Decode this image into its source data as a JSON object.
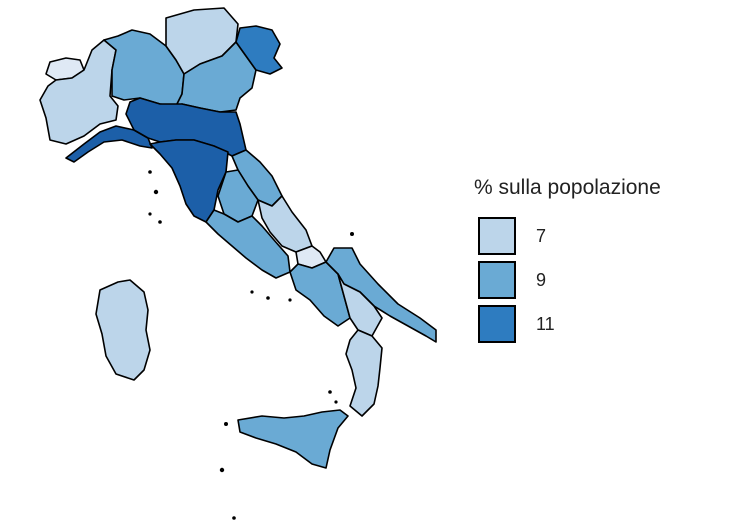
{
  "legend": {
    "title": "% sulla popolazione",
    "items": [
      {
        "label": "7",
        "color": "#bcd5ea"
      },
      {
        "label": "9",
        "color": "#6aaad4"
      },
      {
        "label": "11",
        "color": "#2e7cc0"
      }
    ]
  },
  "palette": {
    "lightest": "#dfe9f5",
    "light": "#bcd5ea",
    "mid": "#6aaad4",
    "dark": "#2e7cc0",
    "darkest": "#1c5fa8"
  },
  "regions": [
    {
      "name": "Valle d'Aosta",
      "value": 6,
      "tone": "lightest"
    },
    {
      "name": "Piemonte",
      "value": 8,
      "tone": "light"
    },
    {
      "name": "Lombardia",
      "value": 9,
      "tone": "mid"
    },
    {
      "name": "Trentino-Alto Adige",
      "value": 8,
      "tone": "light"
    },
    {
      "name": "Veneto",
      "value": 9,
      "tone": "mid"
    },
    {
      "name": "Friuli-Venezia Giulia",
      "value": 10,
      "tone": "dark"
    },
    {
      "name": "Liguria",
      "value": 11,
      "tone": "darkest"
    },
    {
      "name": "Emilia-Romagna",
      "value": 11,
      "tone": "darkest"
    },
    {
      "name": "Toscana",
      "value": 11,
      "tone": "darkest"
    },
    {
      "name": "Umbria",
      "value": 9,
      "tone": "mid"
    },
    {
      "name": "Marche",
      "value": 9,
      "tone": "mid"
    },
    {
      "name": "Lazio",
      "value": 9,
      "tone": "mid"
    },
    {
      "name": "Abruzzo",
      "value": 8,
      "tone": "light"
    },
    {
      "name": "Molise",
      "value": 6,
      "tone": "lightest"
    },
    {
      "name": "Campania",
      "value": 9,
      "tone": "mid"
    },
    {
      "name": "Puglia",
      "value": 9,
      "tone": "mid"
    },
    {
      "name": "Basilicata",
      "value": 8,
      "tone": "light"
    },
    {
      "name": "Calabria",
      "value": 8,
      "tone": "light"
    },
    {
      "name": "Sicilia",
      "value": 9,
      "tone": "mid"
    },
    {
      "name": "Sardegna",
      "value": 8,
      "tone": "light"
    }
  ]
}
